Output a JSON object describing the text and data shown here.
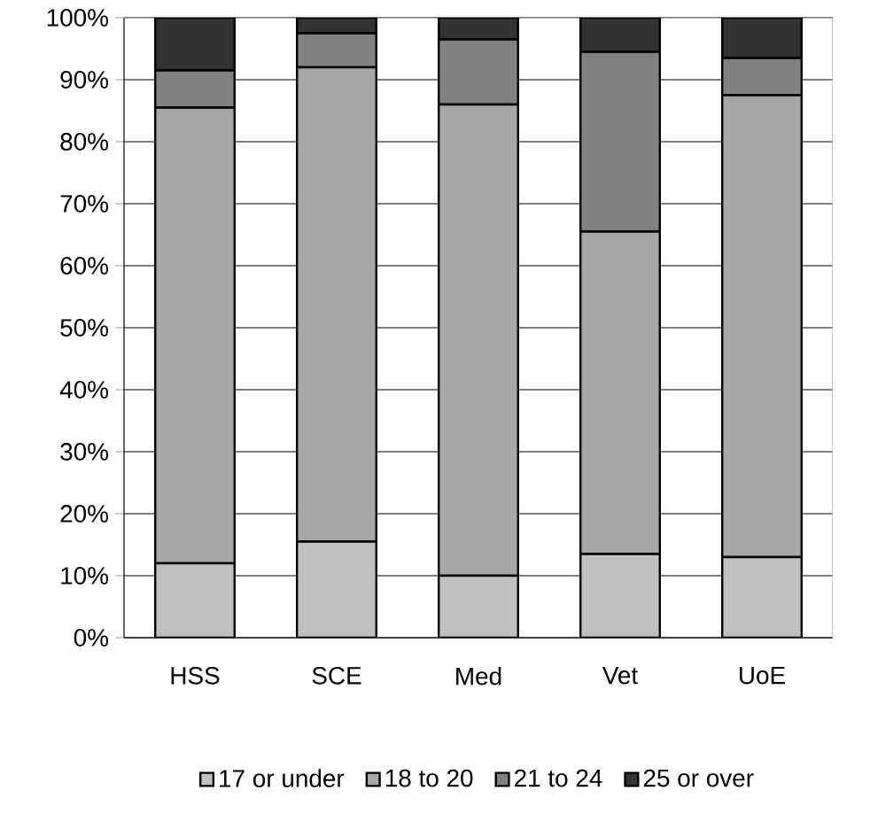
{
  "chart_data": {
    "type": "bar",
    "stacked": true,
    "categories": [
      "HSS",
      "SCE",
      "Med",
      "Vet",
      "UoE"
    ],
    "series": [
      {
        "name": "17 or under",
        "color": "#c0c0c0",
        "values": [
          12,
          15.5,
          10,
          13.5,
          13
        ]
      },
      {
        "name": "18 to 20",
        "color": "#a6a6a6",
        "values": [
          73.5,
          76.5,
          76,
          52,
          74.5
        ]
      },
      {
        "name": "21 to 24",
        "color": "#808080",
        "values": [
          6,
          5.5,
          10.5,
          29,
          6
        ]
      },
      {
        "name": "25 or over",
        "color": "#333333",
        "values": [
          8.5,
          2.5,
          3.5,
          5.5,
          6.5
        ]
      }
    ],
    "ylim": [
      0,
      100
    ],
    "yticks": [
      {
        "value": 0,
        "label": "0%"
      },
      {
        "value": 10,
        "label": "10%"
      },
      {
        "value": 20,
        "label": "20%"
      },
      {
        "value": 30,
        "label": "30%"
      },
      {
        "value": 40,
        "label": "40%"
      },
      {
        "value": 50,
        "label": "50%"
      },
      {
        "value": 60,
        "label": "60%"
      },
      {
        "value": 70,
        "label": "70%"
      },
      {
        "value": 80,
        "label": "80%"
      },
      {
        "value": 90,
        "label": "90%"
      },
      {
        "value": 100,
        "label": "100%"
      }
    ],
    "grid": "y",
    "legend": "bottom"
  }
}
